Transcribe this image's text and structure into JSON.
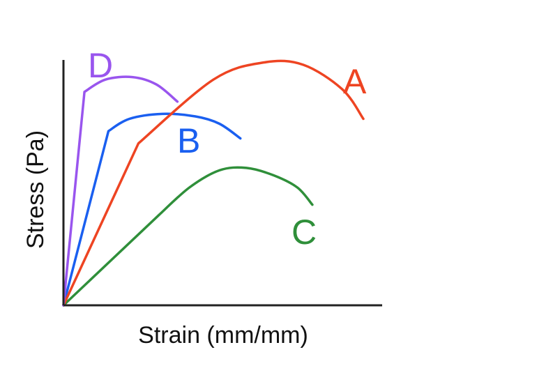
{
  "chart_data": {
    "type": "line",
    "title": "",
    "xlabel": "Strain (mm/mm)",
    "ylabel": "Stress (Pa)",
    "axis_ticks": "none",
    "grid": false,
    "legend": "none; series are labeled directly next to their curves",
    "series": [
      {
        "name": "A",
        "color": "#ee4422",
        "points": [
          [
            0,
            0
          ],
          [
            0.25,
            0.66
          ],
          [
            0.5,
            0.92
          ],
          [
            0.67,
            0.99
          ],
          [
            0.8,
            0.98
          ],
          [
            0.93,
            0.88
          ],
          [
            1.0,
            0.76
          ]
        ]
      },
      {
        "name": "B",
        "color": "#1a5ff0",
        "points": [
          [
            0,
            0
          ],
          [
            0.15,
            0.71
          ],
          [
            0.22,
            0.76
          ],
          [
            0.33,
            0.78
          ],
          [
            0.44,
            0.77
          ],
          [
            0.52,
            0.74
          ],
          [
            0.59,
            0.68
          ]
        ]
      },
      {
        "name": "C",
        "color": "#2f8f3a",
        "points": [
          [
            0,
            0
          ],
          [
            0.32,
            0.37
          ],
          [
            0.42,
            0.48
          ],
          [
            0.52,
            0.55
          ],
          [
            0.61,
            0.56
          ],
          [
            0.7,
            0.53
          ],
          [
            0.78,
            0.48
          ],
          [
            0.83,
            0.41
          ]
        ]
      },
      {
        "name": "D",
        "color": "#9955ee",
        "points": [
          [
            0,
            0
          ],
          [
            0.07,
            0.87
          ],
          [
            0.14,
            0.92
          ],
          [
            0.23,
            0.93
          ],
          [
            0.31,
            0.9
          ],
          [
            0.38,
            0.83
          ]
        ]
      }
    ]
  }
}
